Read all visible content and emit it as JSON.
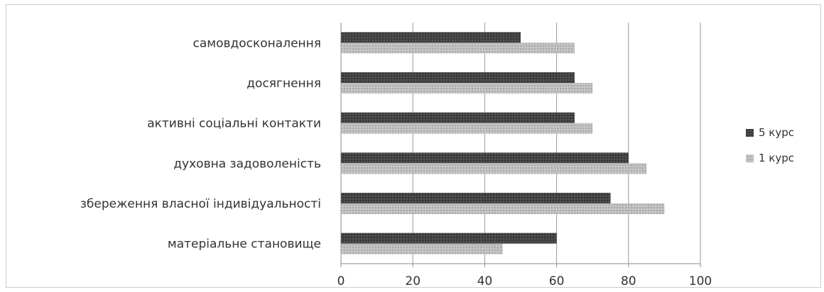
{
  "chart_data": {
    "type": "bar",
    "orientation": "horizontal",
    "categories": [
      "самовдосконалення",
      "досягнення",
      "активні соціальні контакти",
      "духовна задоволеність",
      "збереження власної індивідуальності",
      "матеріальне становище"
    ],
    "series": [
      {
        "name": "5 курс",
        "values": [
          50,
          65,
          65,
          80,
          75,
          60
        ],
        "color": "#4a4a4a"
      },
      {
        "name": "1 курс",
        "values": [
          65,
          70,
          70,
          85,
          90,
          45
        ],
        "color": "#b8b8b8"
      }
    ],
    "xlim": [
      0,
      100
    ],
    "xticks": [
      "0",
      "20",
      "40",
      "60",
      "80",
      "100"
    ],
    "grid": "vertical",
    "legend_position": "right"
  }
}
